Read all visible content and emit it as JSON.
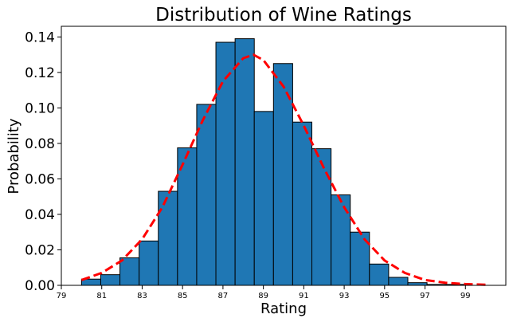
{
  "chart_data": {
    "type": "bar",
    "title": "Distribution of Wine Ratings",
    "xlabel": "Rating",
    "ylabel": "Probability",
    "xlim": [
      79,
      101
    ],
    "ylim": [
      0,
      0.146
    ],
    "grid": false,
    "bar_color": "#1f77b4",
    "bar_edge_color": "#000000",
    "curve_color": "#ff0000",
    "x_ticks": [
      "79",
      "81",
      "83",
      "85",
      "87",
      "89",
      "91",
      "93",
      "95",
      "97",
      "99"
    ],
    "y_ticks": [
      "0.00",
      "0.02",
      "0.04",
      "0.06",
      "0.08",
      "0.10",
      "0.12",
      "0.14"
    ],
    "histogram": {
      "bin_edges": [
        80,
        80.95,
        81.9,
        82.85,
        83.8,
        84.75,
        85.7,
        86.65,
        87.6,
        88.55,
        89.5,
        90.45,
        91.4,
        92.35,
        93.3,
        94.25,
        95.2,
        96.15,
        97.1,
        98.05,
        99.0
      ],
      "values": [
        0.0035,
        0.006,
        0.0155,
        0.025,
        0.053,
        0.0775,
        0.102,
        0.137,
        0.139,
        0.098,
        0.125,
        0.092,
        0.077,
        0.051,
        0.03,
        0.012,
        0.0045,
        0.0015,
        0.0005,
        0.0005
      ]
    },
    "fit_curve": {
      "style": "dashed",
      "x": [
        80,
        81,
        82,
        83,
        84,
        85,
        86,
        87,
        88,
        88.5,
        89,
        90,
        91,
        92,
        93,
        94,
        95,
        96,
        97,
        98,
        99,
        100
      ],
      "y": [
        0.003,
        0.007,
        0.014,
        0.026,
        0.044,
        0.068,
        0.093,
        0.115,
        0.128,
        0.13,
        0.127,
        0.112,
        0.09,
        0.066,
        0.044,
        0.026,
        0.014,
        0.007,
        0.003,
        0.0015,
        0.0007,
        0.0003
      ]
    }
  }
}
